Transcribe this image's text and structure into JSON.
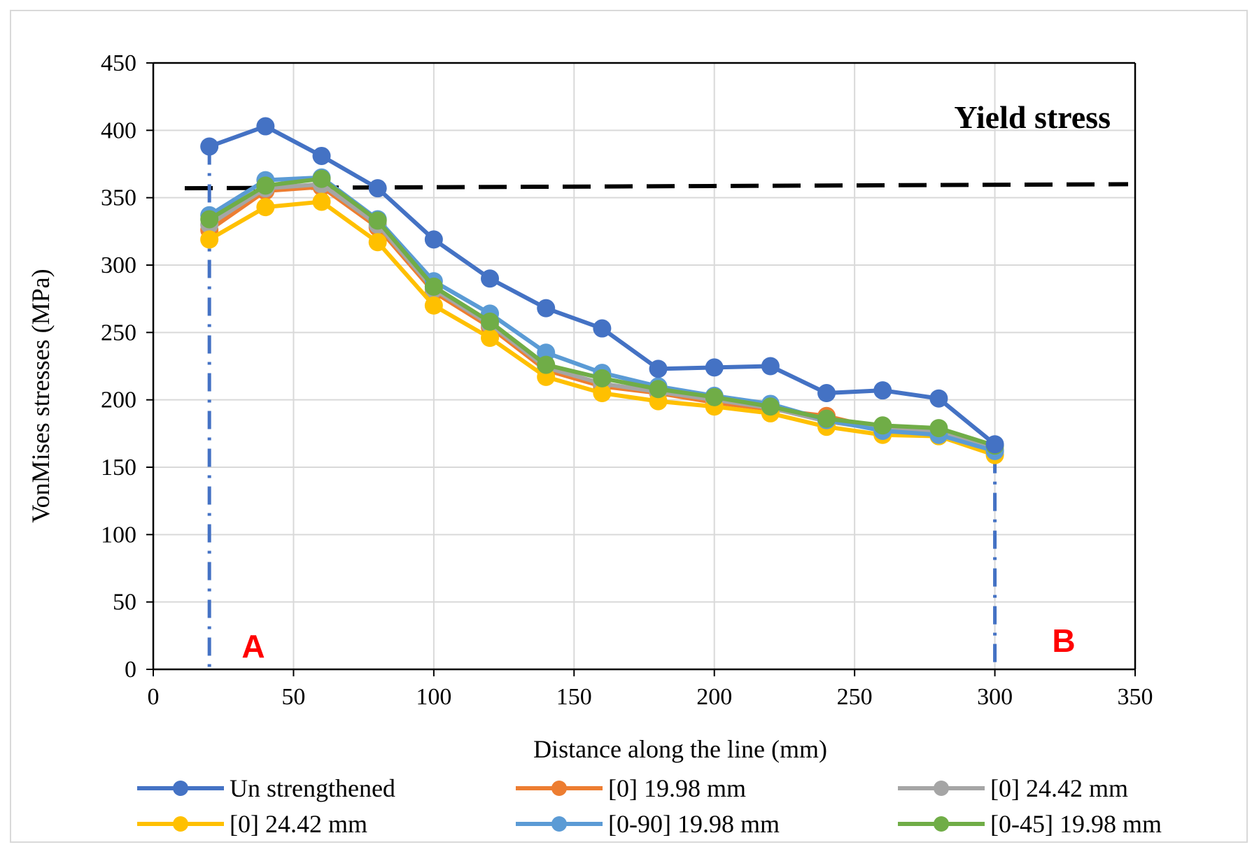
{
  "chart_data": {
    "type": "line",
    "title": "",
    "xlabel": "Distance along the line (mm)",
    "ylabel": "VonMises stresses (MPa)",
    "xlim": [
      0,
      350
    ],
    "ylim": [
      0,
      450
    ],
    "xticks": [
      0,
      50,
      100,
      150,
      200,
      250,
      300,
      350
    ],
    "yticks": [
      0,
      50,
      100,
      150,
      200,
      250,
      300,
      350,
      400,
      450
    ],
    "grid": true,
    "legend_position": "bottom",
    "x": [
      20,
      40,
      60,
      80,
      100,
      120,
      140,
      160,
      180,
      200,
      220,
      240,
      260,
      280,
      300
    ],
    "series": [
      {
        "name": "Un strengthened",
        "color": "#4472c4",
        "values": [
          388,
          403,
          381,
          357,
          319,
          290,
          268,
          253,
          223,
          224,
          225,
          205,
          207,
          201,
          167
        ]
      },
      {
        "name": "[0] 19.98 mm",
        "color": "#ed7d31",
        "values": [
          326,
          355,
          358,
          328,
          280,
          254,
          222,
          210,
          205,
          198,
          193,
          188,
          178,
          176,
          162
        ]
      },
      {
        "name": "[0] 24.42 mm",
        "color": "#a5a5a5",
        "values": [
          330,
          357,
          360,
          330,
          282,
          256,
          224,
          212,
          206,
          200,
          194,
          184,
          178,
          176,
          163
        ]
      },
      {
        "name": "[0] 24.42 mm",
        "color": "#ffc000",
        "values": [
          319,
          343,
          347,
          317,
          270,
          246,
          217,
          205,
          199,
          195,
          190,
          180,
          174,
          173,
          159
        ]
      },
      {
        "name": "[0-90] 19.98 mm",
        "color": "#5b9bd5",
        "values": [
          337,
          363,
          365,
          334,
          288,
          264,
          235,
          220,
          210,
          203,
          197,
          185,
          177,
          174,
          162
        ]
      },
      {
        "name": "[0-45] 19.98 mm",
        "color": "#70ad47",
        "values": [
          334,
          359,
          364,
          333,
          284,
          258,
          226,
          216,
          208,
          202,
          195,
          186,
          181,
          179,
          166
        ]
      }
    ],
    "reference_lines": [
      {
        "label": "Yield stress",
        "y_start": 357,
        "y_end": 360,
        "style": "dashed",
        "color": "#000000"
      }
    ],
    "vertical_markers": [
      {
        "x": 20,
        "label": "A",
        "color": "#4472c4",
        "label_color": "#ff0000"
      },
      {
        "x": 300,
        "label": "B",
        "color": "#4472c4",
        "label_color": "#ff0000"
      }
    ]
  }
}
